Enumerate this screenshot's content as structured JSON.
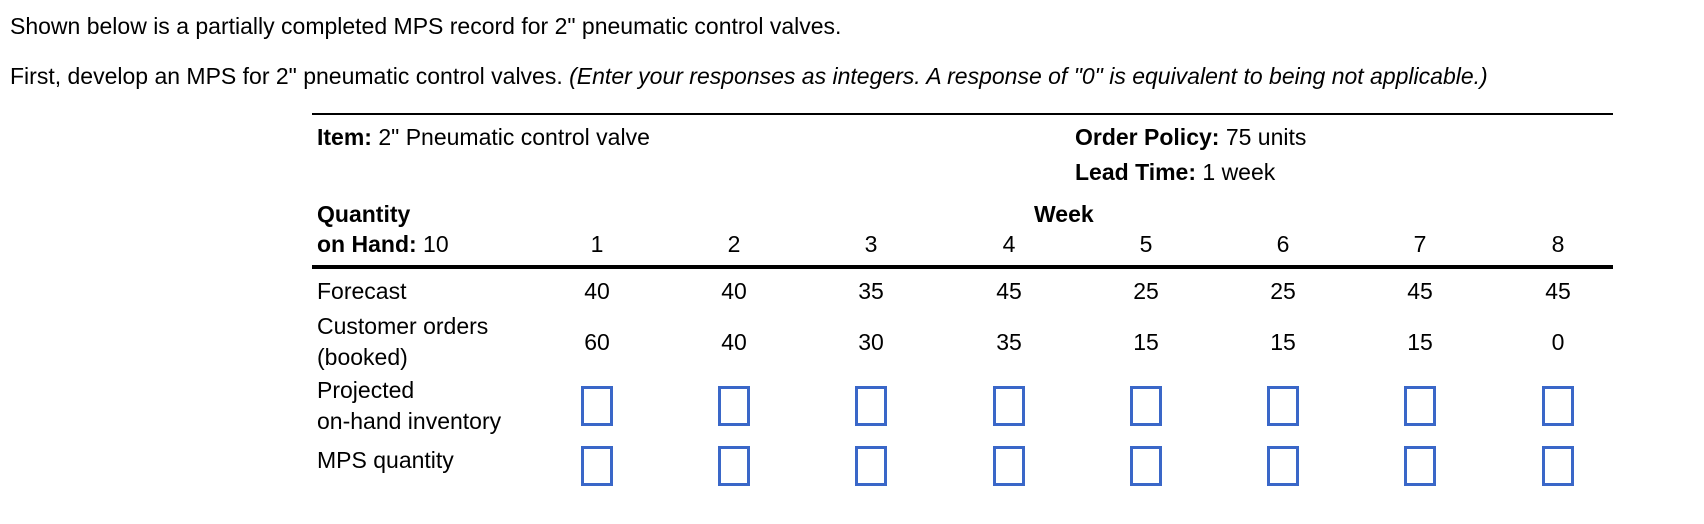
{
  "intro": {
    "line1": "Shown below is a partially completed MPS record for 2\" pneumatic control valves.",
    "line2": "First, develop an MPS for 2\" pneumatic control valves.",
    "line2_note": "(Enter your responses as integers. A response of \"0\" is equivalent to being not applicable.)"
  },
  "table": {
    "item": {
      "label": "Item:",
      "value": "2\" Pneumatic control valve"
    },
    "order_policy": {
      "label": "Order Policy:",
      "value": "75 units"
    },
    "lead_time": {
      "label": "Lead Time:",
      "value": "1 week"
    },
    "quantity_on_hand": {
      "label_line1": "Quantity",
      "label_line2": "on Hand:",
      "value": "10"
    },
    "week_header": "Week",
    "weeks": [
      "1",
      "2",
      "3",
      "4",
      "5",
      "6",
      "7",
      "8"
    ],
    "rows": {
      "forecast": {
        "label": "Forecast",
        "values": [
          "40",
          "40",
          "35",
          "45",
          "25",
          "25",
          "45",
          "45"
        ]
      },
      "customer_orders": {
        "label_line1": "Customer orders",
        "label_line2": "(booked)",
        "values": [
          "60",
          "40",
          "30",
          "35",
          "15",
          "15",
          "15",
          "0"
        ]
      },
      "projected_on_hand": {
        "label_line1": "Projected",
        "label_line2": "on-hand inventory"
      },
      "mps_quantity": {
        "label": "MPS quantity"
      }
    },
    "input_border_color": "#3a67c8"
  }
}
